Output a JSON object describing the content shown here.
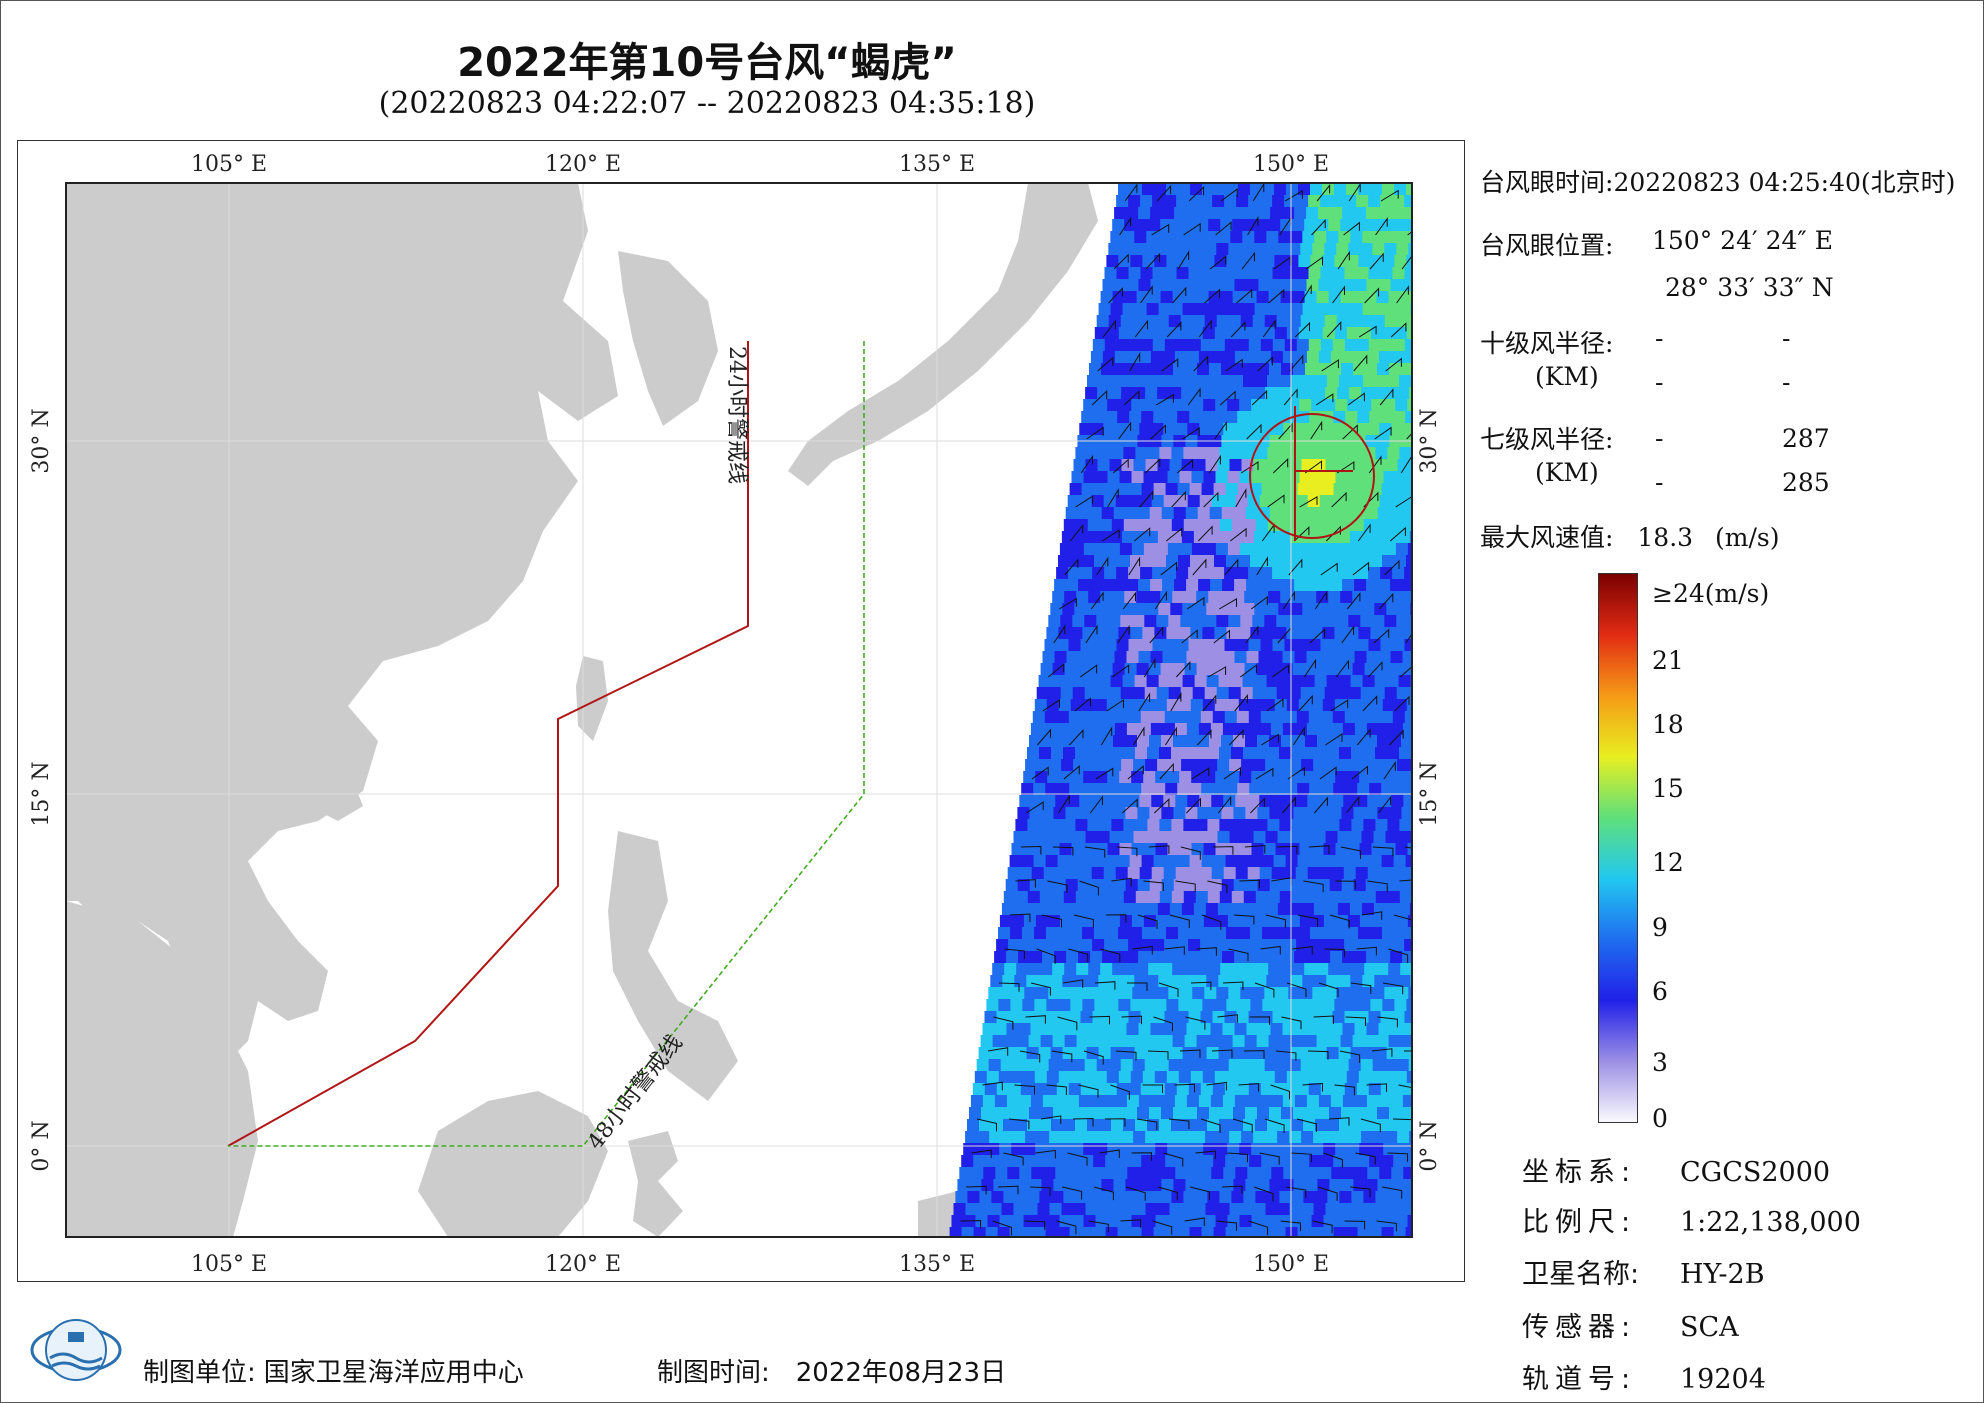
{
  "title": "2022年第10号台风“蝎虎”",
  "subtitle": "(20220823 04:22:07 -- 20220823 04:35:18)",
  "map": {
    "lon_ticks": [
      "105° E",
      "120° E",
      "135° E",
      "150° E"
    ],
    "lat_ticks": [
      "30° N",
      "15° N",
      "0° N"
    ],
    "line_24h_label": "24小时警戒线",
    "line_48h_label": "48小时警戒线",
    "colors": {
      "land": "#cccccc",
      "sea": "#ffffff",
      "line_24h": "#b01515",
      "line_48h": "#44aa22",
      "grid": "#dddddd"
    }
  },
  "info": {
    "eye_time_label": "台风眼时间:",
    "eye_time_value": "20220823 04:25:40(北京时)",
    "eye_pos_label": "台风眼位置:",
    "eye_lon": "150° 24′ 24″ E",
    "eye_lat": "28° 33′ 33″ N",
    "r10_label": "十级风半径:",
    "r10_unit": "(KM)",
    "r10_values": [
      "-",
      "-",
      "-",
      "-"
    ],
    "r7_label": "七级风半径:",
    "r7_unit": "(KM)",
    "r7_values": [
      "-",
      "287",
      "-",
      "285"
    ],
    "max_label": "最大风速值:",
    "max_value": "18.3",
    "max_unit": "(m/s)"
  },
  "colorbar": {
    "labels": [
      "≥24(m/s)",
      "21",
      "18",
      "15",
      "12",
      "9",
      "6",
      "3",
      "0"
    ],
    "stops": [
      "#fafafe",
      "#9c8fe4",
      "#2020e8",
      "#1f6ef0",
      "#22c8f0",
      "#5fe07a",
      "#e8ee20",
      "#f59a16",
      "#e22c14",
      "#7a0000"
    ]
  },
  "meta": [
    {
      "k": "坐标系:",
      "v": "CGCS2000"
    },
    {
      "k": "比例尺:",
      "v": "1:22,138,000"
    },
    {
      "k": "卫星名称:",
      "v": "HY-2B"
    },
    {
      "k": "传感器:",
      "v": "SCA"
    },
    {
      "k": "轨道号:",
      "v": "19204"
    }
  ],
  "footer": {
    "org_label": "制图单位:",
    "org": "国家卫星海洋应用中心",
    "time_label": "制图时间:",
    "time": "2022年08月23日"
  }
}
